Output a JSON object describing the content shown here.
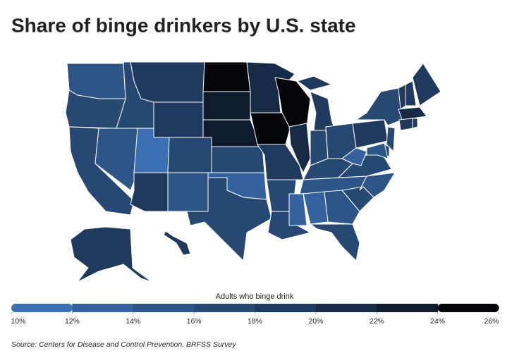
{
  "chart_data": {
    "type": "choropleth",
    "title": "Share of binge drinkers by U.S. state",
    "legend_title": "Adults who binge drink",
    "source": "Source: Centers for Disease and Control Prevention, BRFSS Survey",
    "values": [
      15,
      17,
      17,
      15,
      16,
      18,
      19,
      11,
      16,
      19,
      14,
      25,
      23,
      22,
      17,
      13,
      17,
      21,
      24,
      19,
      17,
      17,
      25,
      21,
      19,
      16,
      17,
      16,
      14,
      13,
      12,
      15,
      17,
      16,
      15,
      16,
      13,
      19,
      17,
      19,
      19,
      18,
      21,
      18,
      19,
      16,
      17,
      15,
      18,
      19
    ],
    "colors": [
      "#3a70b2",
      "#33629e",
      "#2d5588",
      "#274873",
      "#1f3a5d",
      "#172b46",
      "#0e1b2c",
      "#030508"
    ],
    "ticks": [
      {
        "value": 10,
        "label": "10%"
      },
      {
        "value": 12,
        "label": "12%"
      },
      {
        "value": 14,
        "label": "14%"
      },
      {
        "value": 16,
        "label": "16%"
      },
      {
        "value": 18,
        "label": "18%"
      },
      {
        "value": 20,
        "label": "20%"
      },
      {
        "value": 22,
        "label": "22%"
      },
      {
        "value": 24,
        "label": "24%"
      },
      {
        "value": 26,
        "label": "26%"
      }
    ]
  }
}
